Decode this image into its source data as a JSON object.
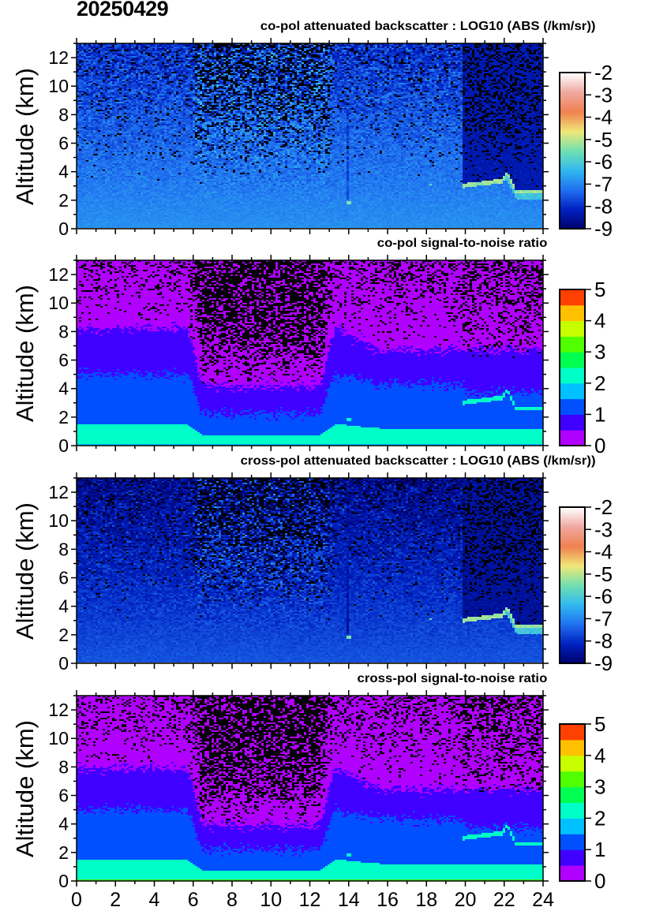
{
  "date": "20250429",
  "chart_data": [
    {
      "type": "heatmap",
      "kind": "backscatter",
      "title": "co-pol attenuated backscatter : LOG10 (ABS (/km/sr))",
      "ylabel": "Altitude (km)",
      "xlim": [
        0,
        24
      ],
      "ylim": [
        0,
        13
      ],
      "yticks": [
        "0",
        "2",
        "4",
        "6",
        "8",
        "10",
        "12"
      ],
      "xticks": [],
      "colorbar": {
        "range": [
          -9,
          -2
        ],
        "ticks": [
          "-2",
          "-3",
          "-4",
          "-5",
          "-6",
          "-7",
          "-8",
          "-9"
        ],
        "colors": [
          "#00006a",
          "#0020c0",
          "#2070f0",
          "#30b8f0",
          "#70e0b0",
          "#f0e878",
          "#f08050",
          "#f0a8a0",
          "#ffffff"
        ]
      }
    },
    {
      "type": "heatmap",
      "kind": "snr",
      "title": "co-pol signal-to-noise ratio",
      "ylabel": "Altitude (km)",
      "xlim": [
        0,
        24
      ],
      "ylim": [
        0,
        13
      ],
      "yticks": [
        "0",
        "2",
        "4",
        "6",
        "8",
        "10",
        "12"
      ],
      "xticks": [],
      "colorbar": {
        "range": [
          0,
          5
        ],
        "ticks": [
          "5",
          "4",
          "3",
          "2",
          "1",
          "0"
        ],
        "colors": [
          "#b000ff",
          "#4000ff",
          "#0050ff",
          "#00c0ff",
          "#00ffc8",
          "#00ff50",
          "#50ff00",
          "#c8ff00",
          "#ffc000",
          "#ff4000"
        ]
      }
    },
    {
      "type": "heatmap",
      "kind": "backscatter",
      "title": "cross-pol attenuated backscatter : LOG10 (ABS (/km/sr))",
      "ylabel": "Altitude (km)",
      "xlim": [
        0,
        24
      ],
      "ylim": [
        0,
        13
      ],
      "yticks": [
        "0",
        "2",
        "4",
        "6",
        "8",
        "10",
        "12"
      ],
      "xticks": [],
      "colorbar": {
        "range": [
          -9,
          -2
        ],
        "ticks": [
          "-2",
          "-3",
          "-4",
          "-5",
          "-6",
          "-7",
          "-8",
          "-9"
        ],
        "colors": [
          "#00006a",
          "#0020c0",
          "#2070f0",
          "#30b8f0",
          "#70e0b0",
          "#f0e878",
          "#f08050",
          "#f0a8a0",
          "#ffffff"
        ]
      }
    },
    {
      "type": "heatmap",
      "kind": "snr",
      "title": "cross-pol signal-to-noise ratio",
      "ylabel": "Altitude (km)",
      "xlim": [
        0,
        24
      ],
      "ylim": [
        0,
        13
      ],
      "yticks": [
        "0",
        "2",
        "4",
        "6",
        "8",
        "10",
        "12"
      ],
      "xticks": [
        "0",
        "2",
        "4",
        "6",
        "8",
        "10",
        "12",
        "14",
        "16",
        "18",
        "20",
        "22",
        "24"
      ],
      "colorbar": {
        "range": [
          0,
          5
        ],
        "ticks": [
          "5",
          "4",
          "3",
          "2",
          "1",
          "0"
        ],
        "colors": [
          "#b000ff",
          "#4000ff",
          "#0050ff",
          "#00c0ff",
          "#00ffc8",
          "#00ff50",
          "#50ff00",
          "#c8ff00",
          "#ffc000",
          "#ff4000"
        ]
      }
    }
  ]
}
